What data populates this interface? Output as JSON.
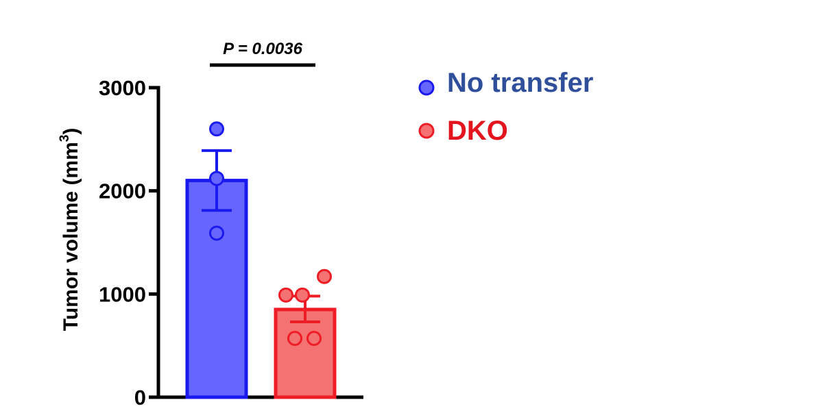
{
  "chart_data": {
    "type": "bar",
    "ylabel": "Tumor volume (mm",
    "ylabel_superscript": "3",
    "ylabel_suffix": ")",
    "ylim": [
      0,
      3000
    ],
    "yticks": [
      0,
      1000,
      2000,
      3000
    ],
    "ytick_labels": [
      "0",
      "1000",
      "2000",
      "3000"
    ],
    "categories": [
      "No transfer",
      "DKO"
    ],
    "series": [
      {
        "name": "No transfer",
        "mean": 2100,
        "sem_upper": 2390,
        "sem_lower": 1810,
        "points": [
          2600,
          2120,
          1590
        ],
        "fill_color": "#6666ff",
        "stroke_color": "#1a1aee"
      },
      {
        "name": "DKO",
        "mean": 850,
        "sem_upper": 980,
        "sem_lower": 730,
        "points": [
          1170,
          990,
          990,
          570,
          570
        ],
        "fill_color": "#f47272",
        "stroke_color": "#ee1c25"
      }
    ],
    "annotation": {
      "text": "P = 0.0036",
      "between": [
        "No transfer",
        "DKO"
      ]
    },
    "legend": {
      "position": "top-right",
      "items": [
        {
          "label": "No transfer",
          "marker_color": "#6666ff",
          "text_color": "#2f4f9a"
        },
        {
          "label": "DKO",
          "marker_color": "#f47272",
          "text_color": "#e4141e"
        }
      ]
    }
  }
}
